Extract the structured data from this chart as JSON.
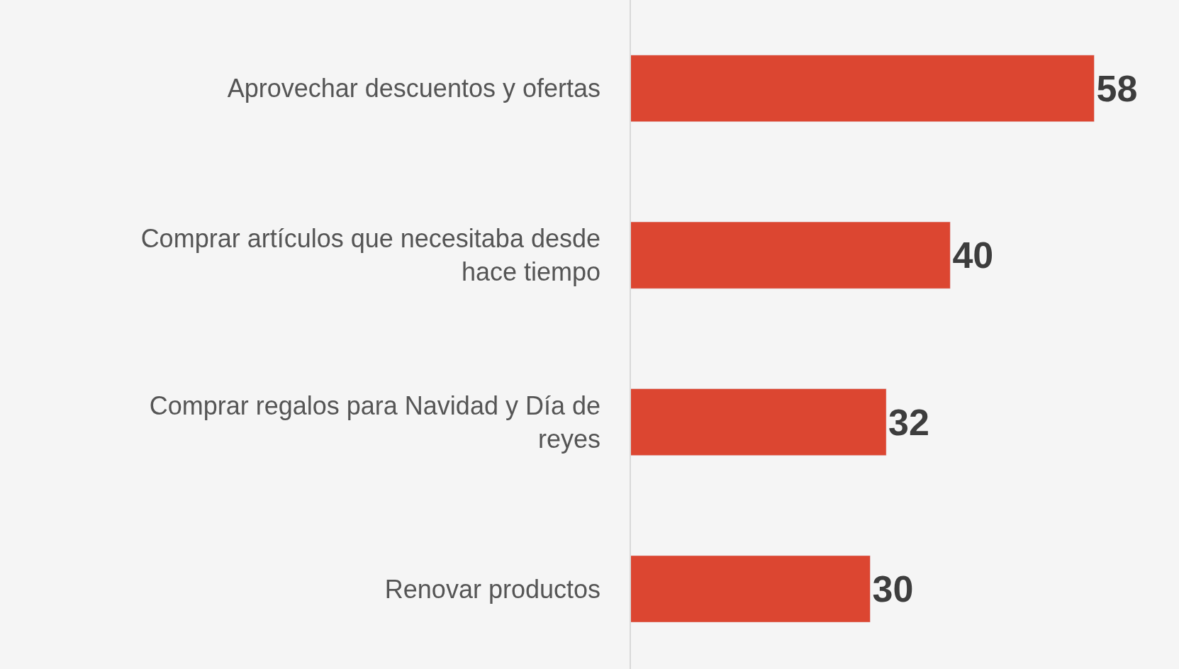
{
  "chart_data": {
    "type": "bar",
    "orientation": "horizontal",
    "categories": [
      "Aprovechar descuentos y ofertas",
      "Comprar artículos que necesitaba desde hace tiempo",
      "Comprar regalos para Navidad y Día de reyes",
      "Renovar productos"
    ],
    "values": [
      58,
      40,
      32,
      30
    ],
    "color": "#dc4631",
    "data_labels": true,
    "tick_labels": "y",
    "grid": false,
    "legend": false
  }
}
